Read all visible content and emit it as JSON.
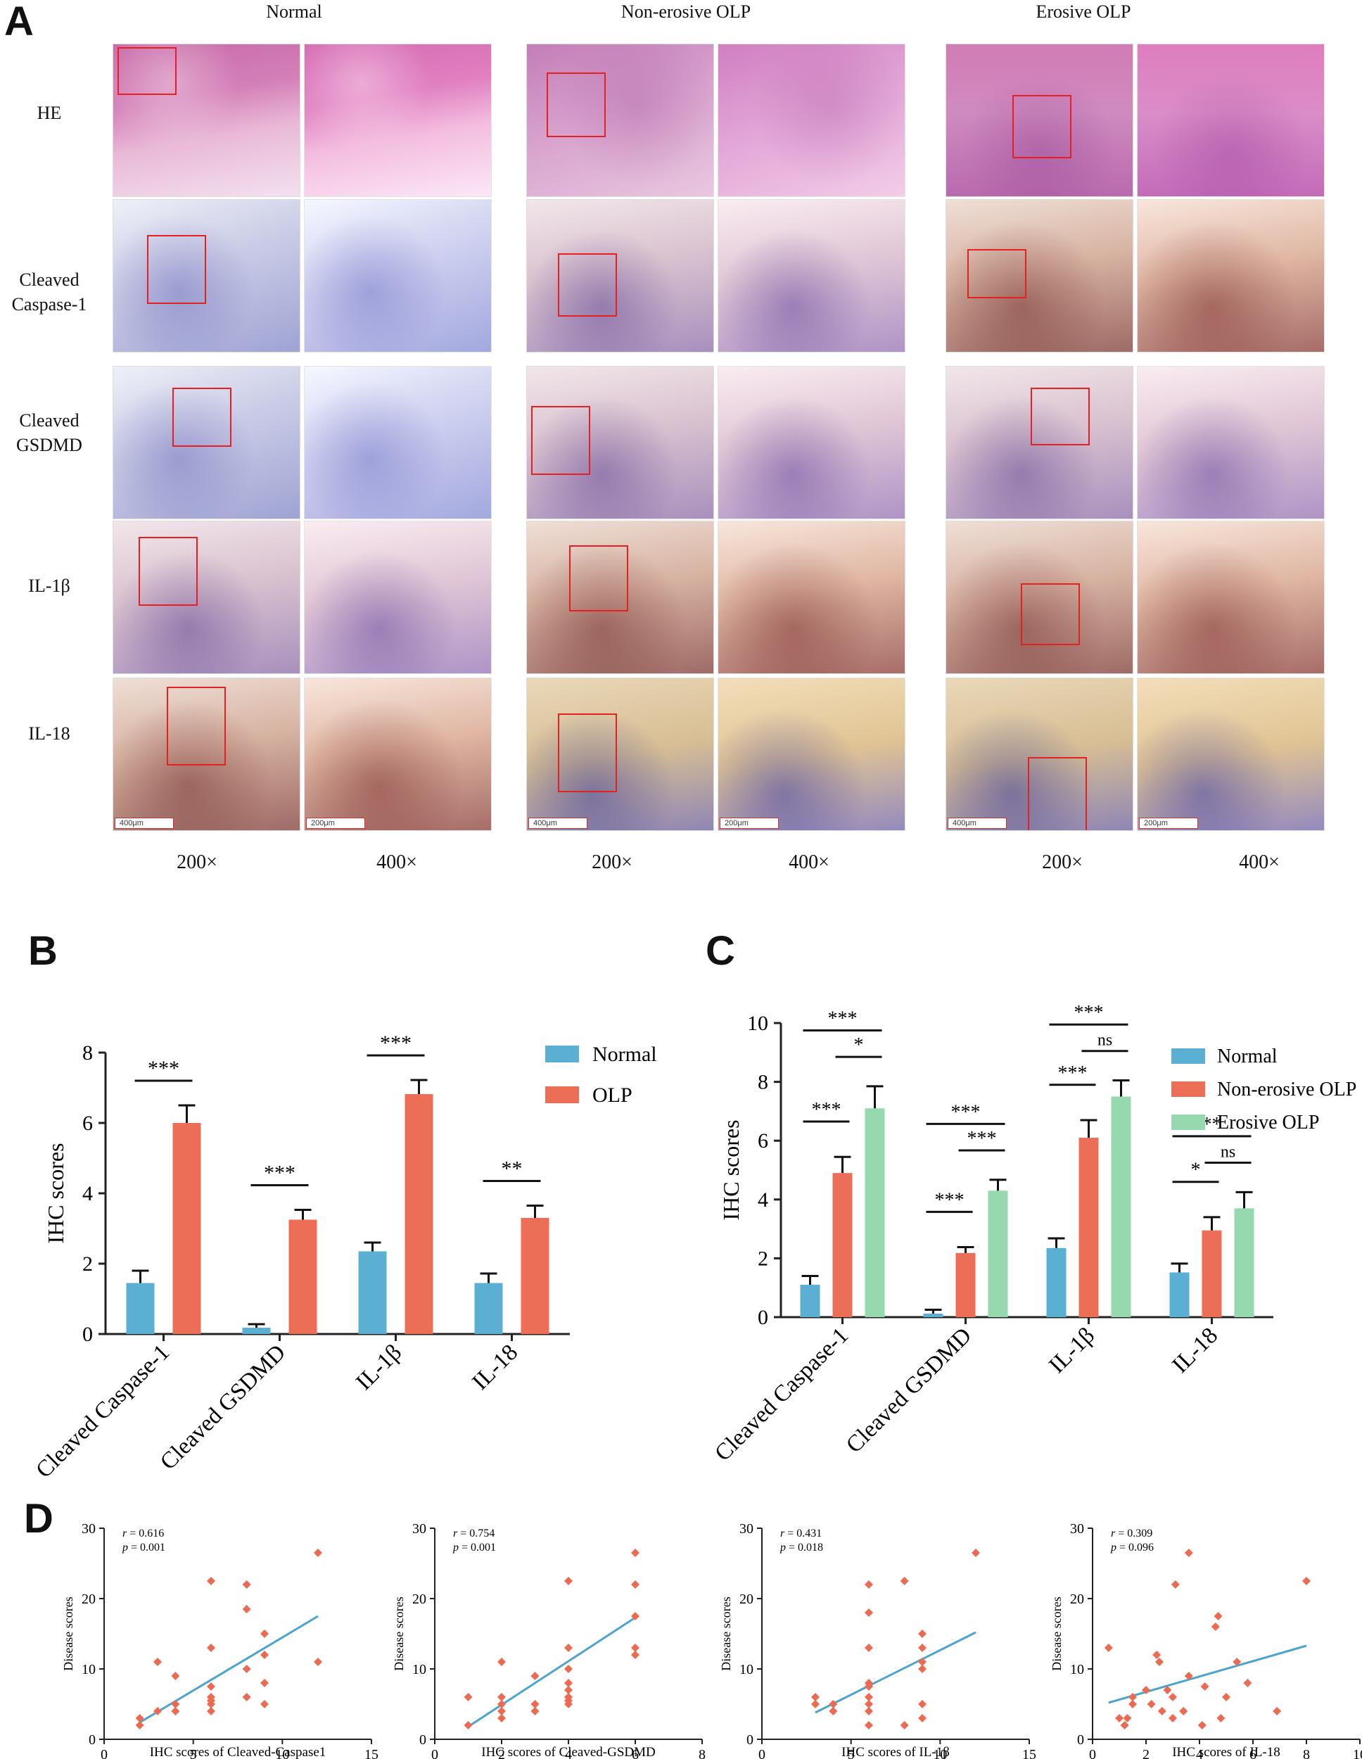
{
  "panelA": {
    "letter": "A",
    "columns": [
      "Normal",
      "Non-erosive OLP",
      "Erosive OLP"
    ],
    "rows": [
      "HE",
      "Cleaved\nCaspase-1",
      "Cleaved\nGSDMD",
      "IL-1β",
      "IL-18"
    ],
    "magnifications": [
      "200×",
      "400×"
    ],
    "scalebars": [
      "400μm",
      "200μm"
    ]
  },
  "panelB": {
    "letter": "B"
  },
  "panelC": {
    "letter": "C"
  },
  "panelD": {
    "letter": "D"
  },
  "colors": {
    "normal": "#5aafd2",
    "olp": "#ec6e57",
    "nonerosive": "#ec6e57",
    "erosive": "#96d9ae",
    "scatter": "#ea6b52",
    "fitline": "#4ba3cf"
  },
  "chart_data": [
    {
      "id": "B",
      "type": "bar",
      "categories": [
        "Cleaved Caspase-1",
        "Cleaved GSDMD",
        "IL-1β",
        "IL-18"
      ],
      "series": [
        {
          "name": "Normal",
          "values": [
            1.45,
            0.18,
            2.35,
            1.45
          ],
          "errors": [
            0.35,
            0.1,
            0.25,
            0.27
          ]
        },
        {
          "name": "OLP",
          "values": [
            6.0,
            3.25,
            6.82,
            3.3
          ],
          "errors": [
            0.5,
            0.28,
            0.4,
            0.35
          ]
        }
      ],
      "ylabel": "IHC scores",
      "ylim": [
        0,
        8
      ],
      "yticks": [
        0,
        2,
        4,
        6,
        8
      ],
      "significance": [
        "***",
        "***",
        "***",
        "**"
      ],
      "legend": "right"
    },
    {
      "id": "C",
      "type": "bar",
      "categories": [
        "Cleaved Caspase-1",
        "Cleaved GSDMD",
        "IL-1β",
        "IL-18"
      ],
      "series": [
        {
          "name": "Normal",
          "values": [
            1.1,
            0.12,
            2.35,
            1.52
          ],
          "errors": [
            0.3,
            0.13,
            0.33,
            0.3
          ]
        },
        {
          "name": "Non-erosive OLP",
          "values": [
            4.9,
            2.18,
            6.1,
            2.95
          ],
          "errors": [
            0.55,
            0.2,
            0.6,
            0.45
          ]
        },
        {
          "name": "Erosive OLP",
          "values": [
            7.1,
            4.3,
            7.5,
            3.7
          ],
          "errors": [
            0.75,
            0.37,
            0.55,
            0.55
          ]
        }
      ],
      "ylabel": "IHC scores",
      "ylim": [
        0,
        10
      ],
      "yticks": [
        0,
        2,
        4,
        6,
        8,
        10
      ],
      "significance": [
        {
          "category": 0,
          "pair": [
            0,
            2
          ],
          "label": "***"
        },
        {
          "category": 0,
          "pair": [
            1,
            2
          ],
          "label": "*"
        },
        {
          "category": 0,
          "pair": [
            0,
            1
          ],
          "label": "***"
        },
        {
          "category": 1,
          "pair": [
            0,
            2
          ],
          "label": "***"
        },
        {
          "category": 1,
          "pair": [
            1,
            2
          ],
          "label": "***"
        },
        {
          "category": 1,
          "pair": [
            0,
            1
          ],
          "label": "***"
        },
        {
          "category": 2,
          "pair": [
            0,
            2
          ],
          "label": "***"
        },
        {
          "category": 2,
          "pair": [
            1,
            2
          ],
          "label": "ns"
        },
        {
          "category": 2,
          "pair": [
            0,
            1
          ],
          "label": "***"
        },
        {
          "category": 3,
          "pair": [
            0,
            2
          ],
          "label": "**"
        },
        {
          "category": 3,
          "pair": [
            1,
            2
          ],
          "label": "ns"
        },
        {
          "category": 3,
          "pair": [
            0,
            1
          ],
          "label": "*"
        }
      ],
      "legend": "top-right"
    },
    {
      "id": "D1",
      "type": "scatter",
      "xlabel": "IHC scores of Cleaved-Caspase1",
      "ylabel": "Disease scores",
      "xlim": [
        0,
        15
      ],
      "xticks": [
        0,
        5,
        10,
        15
      ],
      "ylim": [
        0,
        30
      ],
      "yticks": [
        0,
        10,
        20,
        30
      ],
      "r_label": "r",
      "r_value": " = 0.616",
      "p_label": "p",
      "p_value": " = 0.001",
      "fit": [
        [
          2,
          2.4
        ],
        [
          12,
          17.5
        ]
      ],
      "points": [
        [
          2,
          2
        ],
        [
          2,
          3
        ],
        [
          3,
          4
        ],
        [
          3,
          11
        ],
        [
          4,
          4
        ],
        [
          4,
          5
        ],
        [
          4,
          9
        ],
        [
          6,
          4
        ],
        [
          6,
          5
        ],
        [
          6,
          5.5
        ],
        [
          6,
          6
        ],
        [
          6,
          7.5
        ],
        [
          6,
          13
        ],
        [
          6,
          22.5
        ],
        [
          8,
          6
        ],
        [
          8,
          10
        ],
        [
          8,
          18.5
        ],
        [
          8,
          22
        ],
        [
          9,
          5
        ],
        [
          9,
          8
        ],
        [
          9,
          12
        ],
        [
          9,
          15
        ],
        [
          12,
          11
        ],
        [
          12,
          26.5
        ]
      ]
    },
    {
      "id": "D2",
      "type": "scatter",
      "xlabel": "IHC scores of Cleaved-GSDMD",
      "ylabel": "Disease scores",
      "xlim": [
        0,
        8
      ],
      "xticks": [
        0,
        2,
        4,
        6,
        8
      ],
      "ylim": [
        0,
        30
      ],
      "yticks": [
        0,
        10,
        20,
        30
      ],
      "r_label": "r",
      "r_value": " = 0.754",
      "p_label": "p",
      "p_value": " = 0.001",
      "fit": [
        [
          1,
          1.8
        ],
        [
          6,
          17.3
        ]
      ],
      "points": [
        [
          1,
          2
        ],
        [
          1,
          6
        ],
        [
          2,
          3
        ],
        [
          2,
          4
        ],
        [
          2,
          5
        ],
        [
          2,
          6
        ],
        [
          2,
          11
        ],
        [
          3,
          4
        ],
        [
          3,
          5
        ],
        [
          3,
          9
        ],
        [
          4,
          5
        ],
        [
          4,
          5.5
        ],
        [
          4,
          6
        ],
        [
          4,
          7
        ],
        [
          4,
          8
        ],
        [
          4,
          10
        ],
        [
          4,
          13
        ],
        [
          4,
          22.5
        ],
        [
          6,
          12
        ],
        [
          6,
          13
        ],
        [
          6,
          17.5
        ],
        [
          6,
          22
        ],
        [
          6,
          26.5
        ]
      ]
    },
    {
      "id": "D3",
      "type": "scatter",
      "xlabel": "IHC scores of IL-1β",
      "ylabel": "Disease scores",
      "xlim": [
        0,
        15
      ],
      "xticks": [
        0,
        5,
        10,
        15
      ],
      "ylim": [
        0,
        30
      ],
      "yticks": [
        0,
        10,
        20,
        30
      ],
      "r_label": "r",
      "r_value": " = 0.431",
      "p_label": "p",
      "p_value": " = 0.018",
      "fit": [
        [
          3,
          3.8
        ],
        [
          12,
          15.2
        ]
      ],
      "points": [
        [
          3,
          5
        ],
        [
          3,
          6
        ],
        [
          4,
          4
        ],
        [
          4,
          5
        ],
        [
          6,
          2
        ],
        [
          6,
          4
        ],
        [
          6,
          5
        ],
        [
          6,
          6
        ],
        [
          6,
          7.5
        ],
        [
          6,
          8
        ],
        [
          6,
          13
        ],
        [
          6,
          18
        ],
        [
          6,
          22
        ],
        [
          8,
          2
        ],
        [
          8,
          22.5
        ],
        [
          9,
          3
        ],
        [
          9,
          5
        ],
        [
          9,
          10
        ],
        [
          9,
          11
        ],
        [
          9,
          13
        ],
        [
          9,
          15
        ],
        [
          12,
          26.5
        ]
      ]
    },
    {
      "id": "D4",
      "type": "scatter",
      "xlabel": "IHC scores of IL-18",
      "ylabel": "Disease scores",
      "xlim": [
        0,
        10
      ],
      "xticks": [
        0,
        2,
        4,
        6,
        8,
        10
      ],
      "ylim": [
        0,
        30
      ],
      "yticks": [
        0,
        10,
        20,
        30
      ],
      "r_label": "r",
      "r_value": " = 0.309",
      "p_label": "p",
      "p_value": " = 0.096",
      "fit": [
        [
          0.6,
          5.2
        ],
        [
          8,
          13.3
        ]
      ],
      "points": [
        [
          0.6,
          13
        ],
        [
          1,
          3
        ],
        [
          1.2,
          2
        ],
        [
          1.3,
          3
        ],
        [
          1.5,
          6
        ],
        [
          1.5,
          5
        ],
        [
          2,
          7
        ],
        [
          2.2,
          5
        ],
        [
          2.4,
          12
        ],
        [
          2.5,
          11
        ],
        [
          2.6,
          4
        ],
        [
          2.8,
          7
        ],
        [
          3,
          6
        ],
        [
          3,
          3
        ],
        [
          3.1,
          22
        ],
        [
          3.4,
          4
        ],
        [
          3.6,
          26.5
        ],
        [
          3.6,
          9
        ],
        [
          4.1,
          2
        ],
        [
          4.2,
          7.5
        ],
        [
          4.6,
          16
        ],
        [
          4.7,
          17.5
        ],
        [
          4.8,
          3
        ],
        [
          5,
          6
        ],
        [
          5.4,
          11
        ],
        [
          5.8,
          8
        ],
        [
          6.9,
          4
        ],
        [
          8,
          22.5
        ]
      ]
    }
  ]
}
